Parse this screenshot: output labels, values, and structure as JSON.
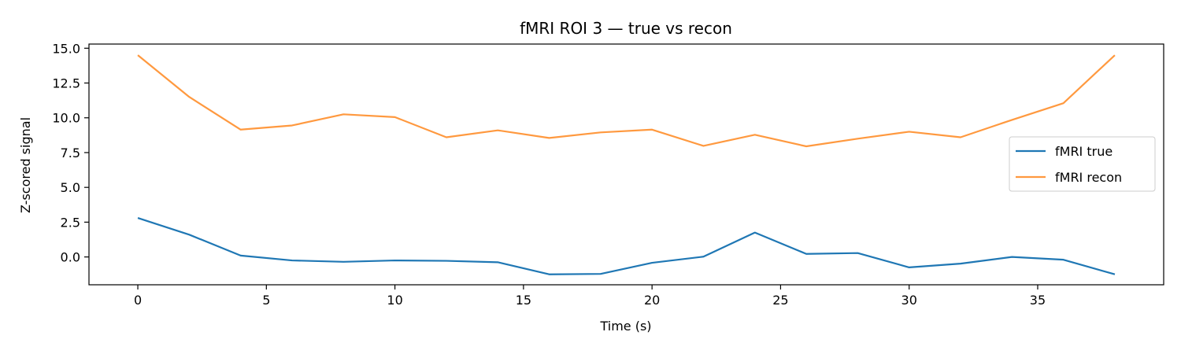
{
  "chart_data": {
    "type": "line",
    "title": "fMRI ROI 3 — true vs recon",
    "xlabel": "Time (s)",
    "ylabel": "Z-scored signal",
    "xlim": [
      -1.9,
      39.9
    ],
    "ylim": [
      -2.0,
      15.3
    ],
    "xticks": [
      0,
      5,
      10,
      15,
      20,
      25,
      30,
      35
    ],
    "xtick_labels": [
      "0",
      "5",
      "10",
      "15",
      "20",
      "25",
      "30",
      "35"
    ],
    "yticks": [
      0.0,
      2.5,
      5.0,
      7.5,
      10.0,
      12.5,
      15.0
    ],
    "ytick_labels": [
      "0.0",
      "2.5",
      "5.0",
      "7.5",
      "10.0",
      "12.5",
      "15.0"
    ],
    "grid": false,
    "legend_position": "center-right",
    "x": [
      0,
      2,
      4,
      6,
      8,
      10,
      12,
      14,
      16,
      18,
      20,
      22,
      24,
      26,
      28,
      30,
      32,
      34,
      36,
      38
    ],
    "series": [
      {
        "name": "fMRI true",
        "color": "#1f77b4",
        "values": [
          2.8,
          1.6,
          0.1,
          -0.25,
          -0.35,
          -0.25,
          -0.28,
          -0.38,
          -1.25,
          -1.22,
          -0.42,
          0.02,
          1.75,
          0.22,
          0.28,
          -0.75,
          -0.48,
          0.0,
          -0.2,
          -1.25
        ]
      },
      {
        "name": "fMRI recon",
        "color": "#ff993f",
        "values": [
          14.5,
          11.5,
          9.15,
          9.45,
          10.25,
          10.05,
          8.6,
          9.1,
          8.55,
          8.95,
          9.15,
          7.98,
          8.78,
          7.95,
          8.5,
          9.0,
          8.6,
          9.85,
          11.05,
          14.5
        ]
      }
    ]
  }
}
